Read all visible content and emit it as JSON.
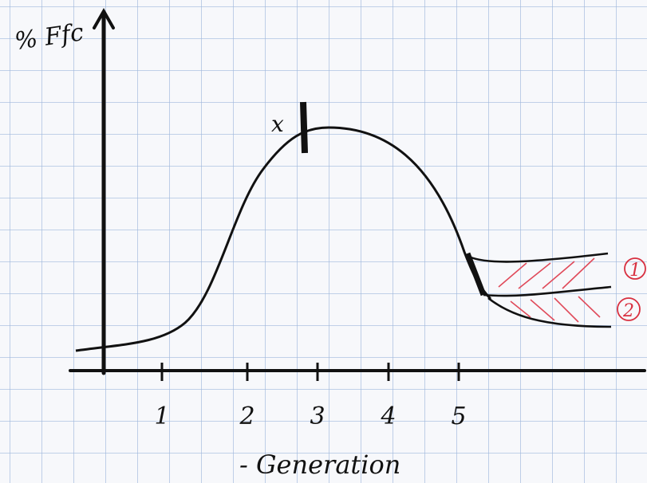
{
  "axes": {
    "y_label": "% Ffc",
    "x_label": "- Generation",
    "x_ticks": [
      "1",
      "2",
      "3",
      "4",
      "5"
    ]
  },
  "annotations": {
    "peak_mark": "x",
    "branch_1": "1",
    "branch_2": "2"
  }
}
